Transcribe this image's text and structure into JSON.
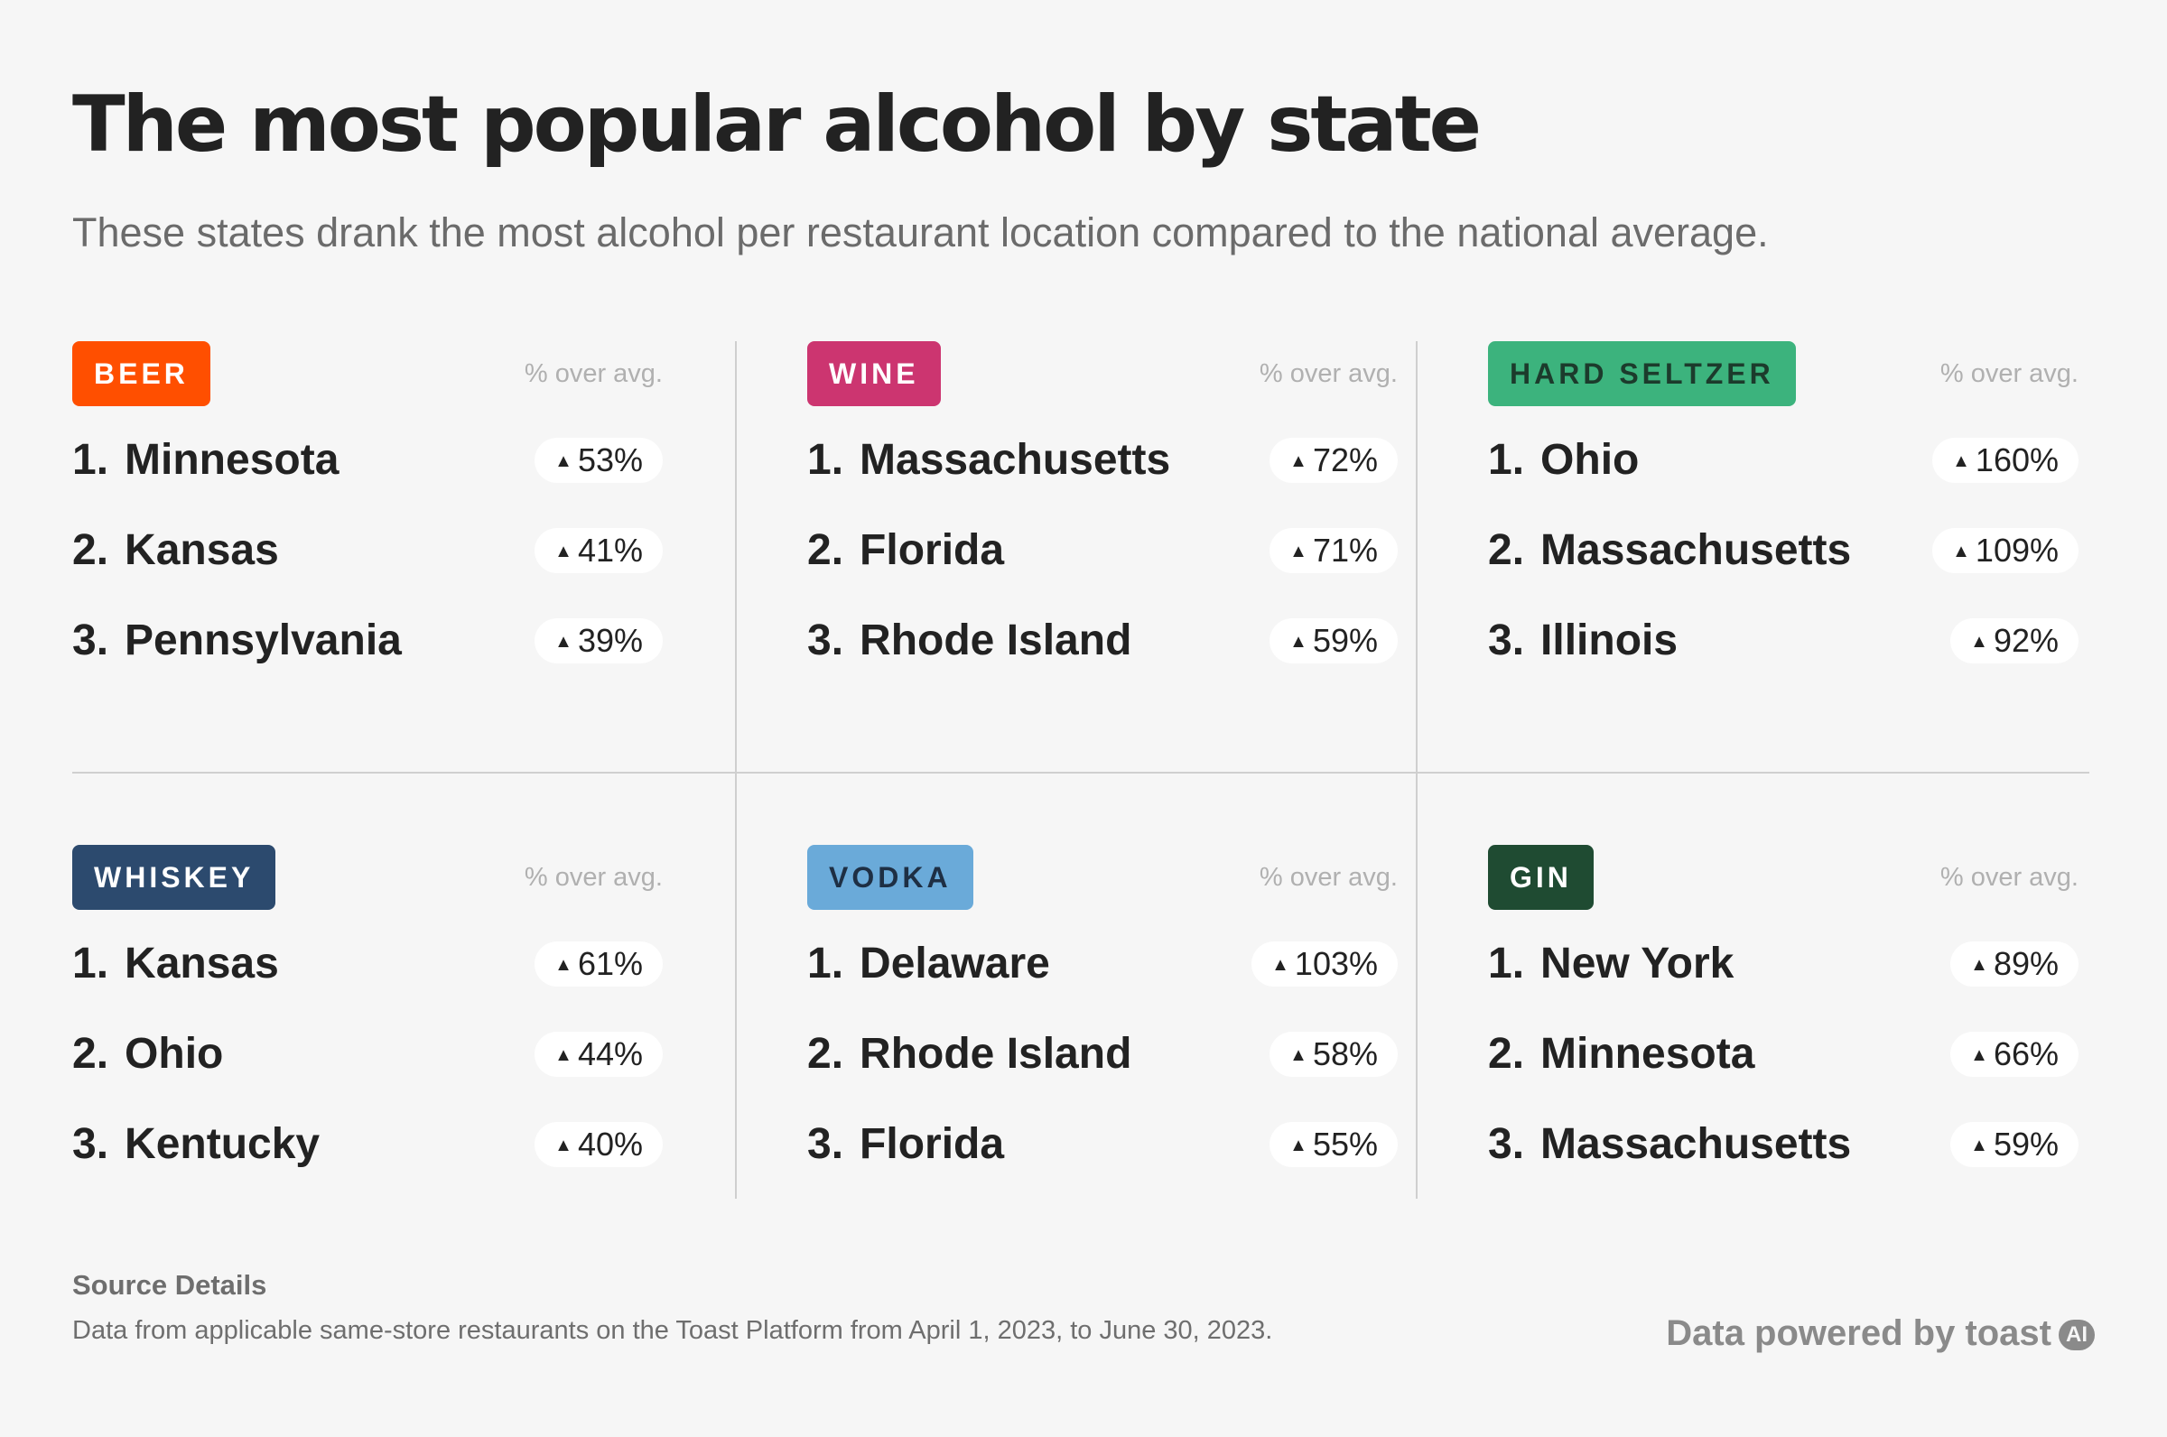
{
  "title": "The most popular alcohol by state",
  "subtitle": "These states drank the most alcohol per restaurant location compared to the national average.",
  "column_header": "% over avg.",
  "chart_data": {
    "type": "table",
    "column_header": "% over avg.",
    "categories": [
      {
        "name": "BEER",
        "color": "#ff4f00",
        "label_color": "#ffffff",
        "rows": [
          {
            "rank": "1.",
            "state": "Minnesota",
            "value": "53%"
          },
          {
            "rank": "2.",
            "state": "Kansas",
            "value": "41%"
          },
          {
            "rank": "3.",
            "state": "Pennsylvania",
            "value": "39%"
          }
        ]
      },
      {
        "name": "WINE",
        "color": "#cc3570",
        "label_color": "#ffffff",
        "rows": [
          {
            "rank": "1.",
            "state": "Massachusetts",
            "value": "72%"
          },
          {
            "rank": "2.",
            "state": "Florida",
            "value": "71%"
          },
          {
            "rank": "3.",
            "state": "Rhode Island",
            "value": "59%"
          }
        ]
      },
      {
        "name": "HARD SELTZER",
        "color": "#3cb37d",
        "label_color": "#1c3b2c",
        "rows": [
          {
            "rank": "1.",
            "state": "Ohio",
            "value": "160%"
          },
          {
            "rank": "2.",
            "state": "Massachusetts",
            "value": "109%"
          },
          {
            "rank": "3.",
            "state": "Illinois",
            "value": "92%"
          }
        ]
      },
      {
        "name": "WHISKEY",
        "color": "#2c4a6e",
        "label_color": "#ffffff",
        "rows": [
          {
            "rank": "1.",
            "state": "Kansas",
            "value": "61%"
          },
          {
            "rank": "2.",
            "state": "Ohio",
            "value": "44%"
          },
          {
            "rank": "3.",
            "state": "Kentucky",
            "value": "40%"
          }
        ]
      },
      {
        "name": "VODKA",
        "color": "#6aaad9",
        "label_color": "#1e2f44",
        "rows": [
          {
            "rank": "1.",
            "state": "Delaware",
            "value": "103%"
          },
          {
            "rank": "2.",
            "state": "Rhode Island",
            "value": "58%"
          },
          {
            "rank": "3.",
            "state": "Florida",
            "value": "55%"
          }
        ]
      },
      {
        "name": "GIN",
        "color": "#1f4b32",
        "label_color": "#ffffff",
        "rows": [
          {
            "rank": "1.",
            "state": "New York",
            "value": "89%"
          },
          {
            "rank": "2.",
            "state": "Minnesota",
            "value": "66%"
          },
          {
            "rank": "3.",
            "state": "Massachusetts",
            "value": "59%"
          }
        ]
      }
    ]
  },
  "footer": {
    "source_label": "Source Details",
    "source_text": "Data from applicable same-store restaurants on the Toast Platform from April 1, 2023, to June 30, 2023.",
    "powered_by": "Data powered by toast",
    "ai_badge": "AI"
  }
}
